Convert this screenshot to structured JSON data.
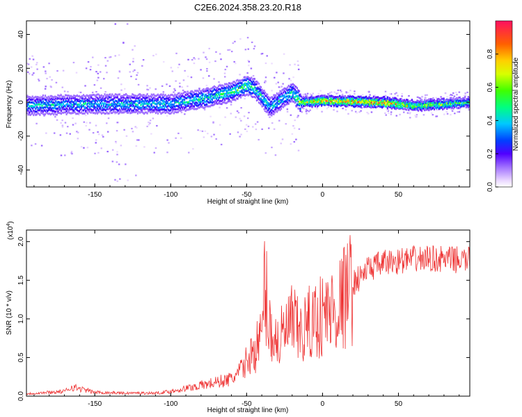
{
  "title": "C2E6.2024.358.23.20.R18",
  "chart_data": [
    {
      "type": "heatmap",
      "xlabel": "Height of straight line (km)",
      "ylabel": "Frequency (Hz)",
      "xlim": [
        -195,
        97
      ],
      "ylim": [
        -50,
        48
      ],
      "xticks": [
        -150,
        -100,
        -50,
        0,
        50
      ],
      "yticks": [
        -40,
        -20,
        0,
        20,
        40
      ],
      "xtick_labels": [
        "-150",
        "-100",
        "-50",
        "0",
        "50"
      ],
      "ytick_labels": [
        "-40",
        "-20",
        "0",
        "20",
        "40"
      ],
      "colorbar": {
        "label": "Normalized spectral amplitude",
        "range": [
          0,
          1
        ],
        "ticks": [
          0.0,
          0.2,
          0.4,
          0.6,
          0.8
        ],
        "tick_labels": [
          "0.0",
          "0.2",
          "0.4",
          "0.6",
          "0.8"
        ]
      },
      "ridge": {
        "description_points_x": [
          -195,
          -150,
          -100,
          -80,
          -60,
          -50,
          -45,
          -35,
          -25,
          -20,
          -15,
          0,
          40,
          60,
          97
        ],
        "frequency": [
          -2,
          -1,
          -1,
          2,
          6,
          10,
          8,
          -3,
          3,
          6,
          0,
          1,
          0,
          -2,
          0
        ],
        "amplitude": [
          0.45,
          0.45,
          0.45,
          0.5,
          0.55,
          0.6,
          0.5,
          0.45,
          0.5,
          0.55,
          0.7,
          0.9,
          0.9,
          0.7,
          0.6
        ]
      }
    },
    {
      "type": "line",
      "xlabel": "Height of straight line (km)",
      "ylabel": "SNR (10 * v/v)",
      "exponent_label": "(x10",
      "exponent_sup": "4",
      "exponent_close": ")",
      "xlim": [
        -195,
        97
      ],
      "ylim": [
        0,
        2.15
      ],
      "xticks": [
        -150,
        -100,
        -50,
        0,
        50
      ],
      "yticks": [
        0.0,
        0.5,
        1.0,
        1.5,
        2.0
      ],
      "xtick_labels": [
        "-150",
        "-100",
        "-50",
        "0",
        "50"
      ],
      "ytick_labels": [
        "0.0",
        "0.5",
        "1.0",
        "1.5",
        "2.0"
      ],
      "color": "#ee3333",
      "series": [
        {
          "x": [
            -195,
            -180,
            -170,
            -165,
            -150,
            -130,
            -110,
            -100,
            -90,
            -80,
            -70,
            -60,
            -55,
            -50,
            -45,
            -40,
            -38,
            -35,
            -30,
            -25,
            -20,
            -15,
            -10,
            -5,
            0,
            5,
            10,
            15,
            20,
            25,
            30,
            40,
            50,
            60,
            70,
            80,
            97
          ],
          "y": [
            0.03,
            0.05,
            0.06,
            0.12,
            0.05,
            0.04,
            0.04,
            0.06,
            0.1,
            0.14,
            0.18,
            0.22,
            0.3,
            0.45,
            0.6,
            0.75,
            1.5,
            0.9,
            0.7,
            0.8,
            0.95,
            0.8,
            0.9,
            1.0,
            1.05,
            1.1,
            1.15,
            1.3,
            1.45,
            1.55,
            1.65,
            1.72,
            1.75,
            1.77,
            1.78,
            1.77,
            1.76
          ]
        }
      ]
    }
  ]
}
